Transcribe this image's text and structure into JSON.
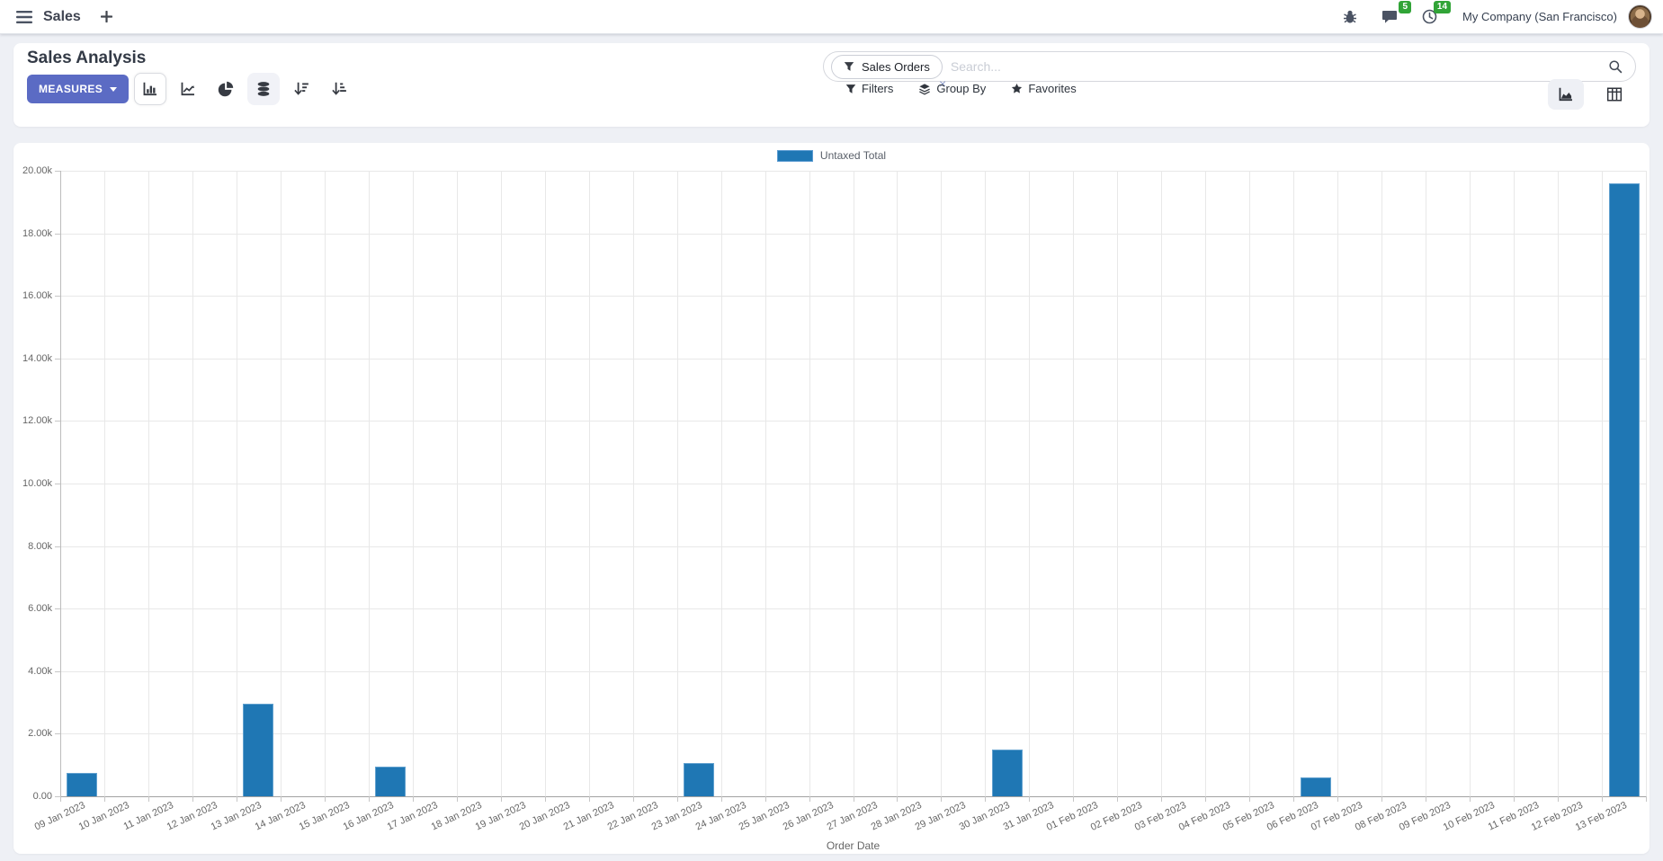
{
  "navbar": {
    "app_name": "Sales",
    "messages_badge": "5",
    "activities_badge": "14",
    "company": "My Company (San Francisco)"
  },
  "control_panel": {
    "title": "Sales Analysis",
    "measures_label": "MEASURES",
    "search": {
      "facet_label": "Sales Orders",
      "placeholder": "Search...",
      "remove_symbol": "×"
    },
    "filters_label": "Filters",
    "group_by_label": "Group By",
    "favorites_label": "Favorites",
    "view_buttons": [
      "bar-chart",
      "line-chart",
      "pie-chart",
      "stacked-toggle",
      "sort-descending",
      "sort-ascending"
    ],
    "view_switchers": [
      "graph-view",
      "pivot-view"
    ]
  },
  "colors": {
    "accent": "#5b6bc4",
    "bar": "#1f77b4",
    "badge_green": "#31a437"
  },
  "chart_data": {
    "type": "bar",
    "title": "",
    "xlabel": "Order Date",
    "ylabel": "",
    "ylim": [
      0,
      20000
    ],
    "ytick_step": 2000,
    "ytick_labels": [
      "0.00",
      "2.00k",
      "4.00k",
      "6.00k",
      "8.00k",
      "10.00k",
      "12.00k",
      "14.00k",
      "16.00k",
      "18.00k",
      "20.00k"
    ],
    "grid": true,
    "legend_position": "top",
    "categories": [
      "09 Jan 2023",
      "10 Jan 2023",
      "11 Jan 2023",
      "12 Jan 2023",
      "13 Jan 2023",
      "14 Jan 2023",
      "15 Jan 2023",
      "16 Jan 2023",
      "17 Jan 2023",
      "18 Jan 2023",
      "19 Jan 2023",
      "20 Jan 2023",
      "21 Jan 2023",
      "22 Jan 2023",
      "23 Jan 2023",
      "24 Jan 2023",
      "25 Jan 2023",
      "26 Jan 2023",
      "27 Jan 2023",
      "28 Jan 2023",
      "29 Jan 2023",
      "30 Jan 2023",
      "31 Jan 2023",
      "01 Feb 2023",
      "02 Feb 2023",
      "03 Feb 2023",
      "04 Feb 2023",
      "05 Feb 2023",
      "06 Feb 2023",
      "07 Feb 2023",
      "08 Feb 2023",
      "09 Feb 2023",
      "10 Feb 2023",
      "11 Feb 2023",
      "12 Feb 2023",
      "13 Feb 2023"
    ],
    "series": [
      {
        "name": "Untaxed Total",
        "values": [
          750,
          0,
          0,
          0,
          2950,
          0,
          0,
          950,
          0,
          0,
          0,
          0,
          0,
          0,
          1050,
          0,
          0,
          0,
          0,
          0,
          0,
          1500,
          0,
          0,
          0,
          0,
          0,
          0,
          600,
          0,
          0,
          0,
          0,
          0,
          0,
          19600
        ]
      }
    ]
  }
}
